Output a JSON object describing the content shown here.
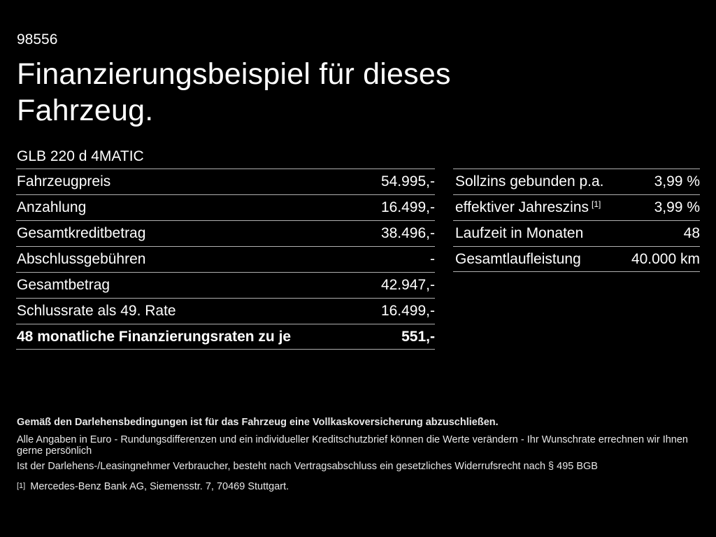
{
  "header": {
    "listing_id": "98556",
    "title_line1": "Finanzierungsbeispiel für dieses",
    "title_line2": "Fahrzeug.",
    "vehicle_model": "GLB 220 d 4MATIC"
  },
  "finance_table": {
    "rows": [
      {
        "label": "Fahrzeugpreis",
        "value": "54.995,-"
      },
      {
        "label": "Anzahlung",
        "value": "16.499,-"
      },
      {
        "label": "Gesamtkreditbetrag",
        "value": "38.496,-"
      },
      {
        "label": "Abschlussgebühren",
        "value": "-"
      },
      {
        "label": "Gesamtbetrag",
        "value": "42.947,-"
      },
      {
        "label": "Schlussrate als 49. Rate",
        "value": "16.499,-"
      },
      {
        "label": "48 monatliche Finanzierungsraten zu je",
        "value": "551,-"
      }
    ]
  },
  "conditions_table": {
    "rows": [
      {
        "label": "Sollzins gebunden p.a.",
        "value": "3,99 %"
      },
      {
        "label": "effektiver Jahreszins",
        "sup": "[1]",
        "value": "3,99 %"
      },
      {
        "label": "Laufzeit in Monaten",
        "value": "48"
      },
      {
        "label": "Gesamtlaufleistung",
        "value": "40.000 km"
      }
    ]
  },
  "footer": {
    "insurance_note": "Gemäß den Darlehensbedingungen ist für das Fahrzeug eine Vollkaskoversicherung abzuschließen.",
    "disclaimer_line1": "Alle Angaben in Euro - Rundungsdifferenzen und ein individueller Kreditschutzbrief können die Werte verändern - Ihr Wunschrate errechnen wir Ihnen gerne persönlich",
    "disclaimer_line2": "Ist der Darlehens-/Leasingnehmer Verbraucher, besteht nach Vertragsabschluss ein gesetzliches Widerrufsrecht nach § 495 BGB",
    "footnote_marker": "[1]",
    "footnote_text": "Mercedes-Benz Bank AG, Siemensstr. 7, 70469 Stuttgart."
  },
  "colors": {
    "background": "#000000",
    "text": "#ffffff",
    "divider": "#b0b0b0"
  }
}
